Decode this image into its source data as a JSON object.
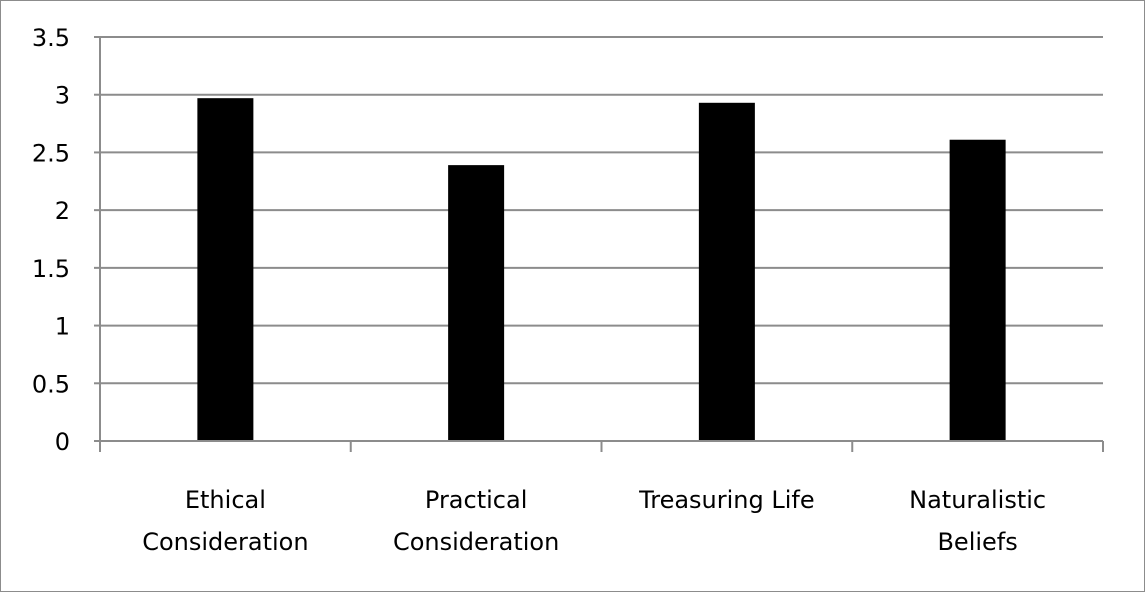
{
  "chart_data": {
    "type": "bar",
    "categories": [
      [
        "Ethical",
        "Consideration"
      ],
      [
        "Practical",
        "Consideration"
      ],
      [
        "Treasuring Life"
      ],
      [
        "Naturalistic",
        "Beliefs"
      ]
    ],
    "values": [
      2.97,
      2.39,
      2.93,
      2.61
    ],
    "ylim": [
      0,
      3.5
    ],
    "yticks": [
      "0",
      "0.5",
      "1",
      "1.5",
      "2",
      "2.5",
      "3",
      "3.5"
    ],
    "ytick_values": [
      0,
      0.5,
      1,
      1.5,
      2,
      2.5,
      3,
      3.5
    ],
    "grid": true,
    "legend": "none",
    "colors": {
      "bar": "#000000",
      "grid": "#8c8c8c",
      "axis": "#8c8c8c",
      "frame": "#8c8c8c"
    }
  }
}
